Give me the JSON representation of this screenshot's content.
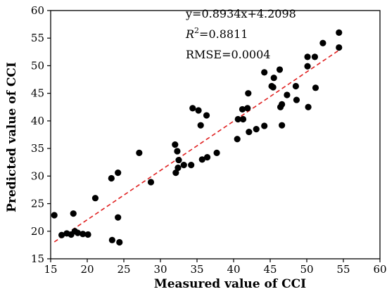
{
  "chart_data": {
    "type": "scatter",
    "title": "",
    "xlabel": "Measured value of CCI",
    "ylabel": "Predicted value of CCI",
    "xlim": [
      15,
      60
    ],
    "ylim": [
      15,
      60
    ],
    "x_ticks": [
      15,
      20,
      25,
      30,
      35,
      40,
      45,
      50,
      55,
      60
    ],
    "y_ticks": [
      15,
      20,
      25,
      30,
      35,
      40,
      45,
      50,
      55,
      60
    ],
    "grid": false,
    "legend": "none",
    "colors": {
      "points": "#000000",
      "fit_line": "#e02020",
      "axes": "#000000"
    },
    "annotations": {
      "equation": "y=0.8934x+4.2098",
      "r2_prefix": "R",
      "r2_superscript": "2",
      "r2_suffix": "=0.8811",
      "rmse": "RMSE=0.0004"
    },
    "fit_line": {
      "slope": 0.8934,
      "intercept": 4.2098,
      "x_range": [
        15.5,
        54.5
      ]
    },
    "points": [
      {
        "x": 15.5,
        "y": 22.9
      },
      {
        "x": 16.5,
        "y": 19.3
      },
      {
        "x": 17.2,
        "y": 19.6
      },
      {
        "x": 17.8,
        "y": 19.4
      },
      {
        "x": 18.1,
        "y": 23.2
      },
      {
        "x": 18.3,
        "y": 20.0
      },
      {
        "x": 18.7,
        "y": 19.7
      },
      {
        "x": 19.4,
        "y": 19.5
      },
      {
        "x": 20.1,
        "y": 19.4
      },
      {
        "x": 21.1,
        "y": 26.0
      },
      {
        "x": 23.3,
        "y": 29.6
      },
      {
        "x": 23.4,
        "y": 18.4
      },
      {
        "x": 24.2,
        "y": 30.6
      },
      {
        "x": 24.2,
        "y": 22.5
      },
      {
        "x": 24.4,
        "y": 18.0
      },
      {
        "x": 27.1,
        "y": 34.2
      },
      {
        "x": 28.7,
        "y": 28.9
      },
      {
        "x": 32.0,
        "y": 35.7
      },
      {
        "x": 32.1,
        "y": 30.6
      },
      {
        "x": 32.3,
        "y": 34.5
      },
      {
        "x": 32.4,
        "y": 31.5
      },
      {
        "x": 32.5,
        "y": 32.9
      },
      {
        "x": 33.2,
        "y": 32.0
      },
      {
        "x": 34.2,
        "y": 32.0
      },
      {
        "x": 34.4,
        "y": 42.3
      },
      {
        "x": 35.2,
        "y": 41.9
      },
      {
        "x": 35.5,
        "y": 39.2
      },
      {
        "x": 35.7,
        "y": 33.0
      },
      {
        "x": 36.3,
        "y": 41.0
      },
      {
        "x": 36.4,
        "y": 33.4
      },
      {
        "x": 37.7,
        "y": 34.2
      },
      {
        "x": 40.5,
        "y": 36.7
      },
      {
        "x": 40.6,
        "y": 40.3
      },
      {
        "x": 41.2,
        "y": 42.1
      },
      {
        "x": 41.3,
        "y": 40.3
      },
      {
        "x": 41.9,
        "y": 42.3
      },
      {
        "x": 42.0,
        "y": 45.0
      },
      {
        "x": 42.1,
        "y": 38.0
      },
      {
        "x": 43.1,
        "y": 38.5
      },
      {
        "x": 44.2,
        "y": 39.1
      },
      {
        "x": 44.2,
        "y": 48.8
      },
      {
        "x": 45.2,
        "y": 46.3
      },
      {
        "x": 45.4,
        "y": 46.1
      },
      {
        "x": 45.5,
        "y": 47.8
      },
      {
        "x": 46.3,
        "y": 49.3
      },
      {
        "x": 46.4,
        "y": 42.5
      },
      {
        "x": 46.6,
        "y": 43.0
      },
      {
        "x": 46.6,
        "y": 39.2
      },
      {
        "x": 47.3,
        "y": 44.7
      },
      {
        "x": 48.5,
        "y": 46.3
      },
      {
        "x": 48.6,
        "y": 43.8
      },
      {
        "x": 50.1,
        "y": 49.9
      },
      {
        "x": 50.1,
        "y": 51.6
      },
      {
        "x": 50.2,
        "y": 42.5
      },
      {
        "x": 51.1,
        "y": 51.6
      },
      {
        "x": 51.2,
        "y": 46.0
      },
      {
        "x": 52.2,
        "y": 54.1
      },
      {
        "x": 54.4,
        "y": 56.0
      },
      {
        "x": 54.4,
        "y": 53.3
      }
    ]
  }
}
